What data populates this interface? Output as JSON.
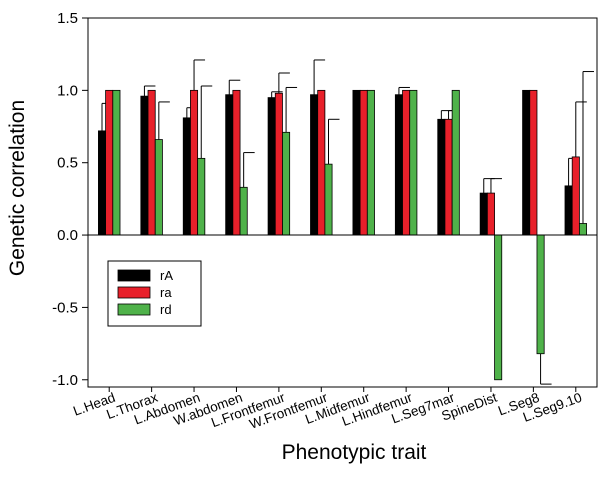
{
  "chart_data": {
    "type": "bar",
    "xlabel": "Phenotypic trait",
    "ylabel": "Genetic correlation",
    "ylim": [
      -1.05,
      1.5
    ],
    "yticks": [
      "1.5",
      "1.0",
      "0.5",
      "0.0",
      "-0.5",
      "-1.0"
    ],
    "ytick_values": [
      1.5,
      1.0,
      0.5,
      0.0,
      -0.5,
      -1.0
    ],
    "grid": false,
    "legend_position": "left",
    "categories": [
      "L.Head",
      "L.Thorax",
      "L.Abdomen",
      "W.abdomen",
      "L.Frontfemur",
      "W.Frontfemur",
      "L.Midfemur",
      "L.Hindfemur",
      "L.Seg7mar",
      "SpineDist",
      "L.Seg8",
      "L.Seg9.10"
    ],
    "series": [
      {
        "name": "rA",
        "color": "#000000",
        "values": [
          0.72,
          0.96,
          0.81,
          0.97,
          0.95,
          0.97,
          1.0,
          0.97,
          0.8,
          0.29,
          1.0,
          0.34
        ],
        "errors": [
          0.19,
          0.07,
          0.07,
          0.1,
          0.04,
          0.24,
          0.0,
          0.05,
          0.06,
          0.1,
          0.0,
          0.19
        ]
      },
      {
        "name": "ra",
        "color": "#e8202a",
        "values": [
          1.0,
          1.0,
          1.0,
          1.0,
          0.98,
          1.0,
          1.0,
          1.0,
          0.8,
          0.29,
          1.0,
          0.54
        ],
        "errors": [
          0.0,
          0.0,
          0.21,
          0.0,
          0.14,
          0.0,
          0.0,
          0.0,
          0.06,
          0.1,
          0.0,
          0.38
        ]
      },
      {
        "name": "rd",
        "color": "#4fb24a",
        "values": [
          1.0,
          0.66,
          0.53,
          0.33,
          0.71,
          0.49,
          1.0,
          1.0,
          1.0,
          -1.0,
          -0.82,
          0.08
        ],
        "errors": [
          0.0,
          0.26,
          0.5,
          0.24,
          0.31,
          0.31,
          0.0,
          0.0,
          0.0,
          0.0,
          0.21,
          1.05
        ]
      }
    ]
  }
}
